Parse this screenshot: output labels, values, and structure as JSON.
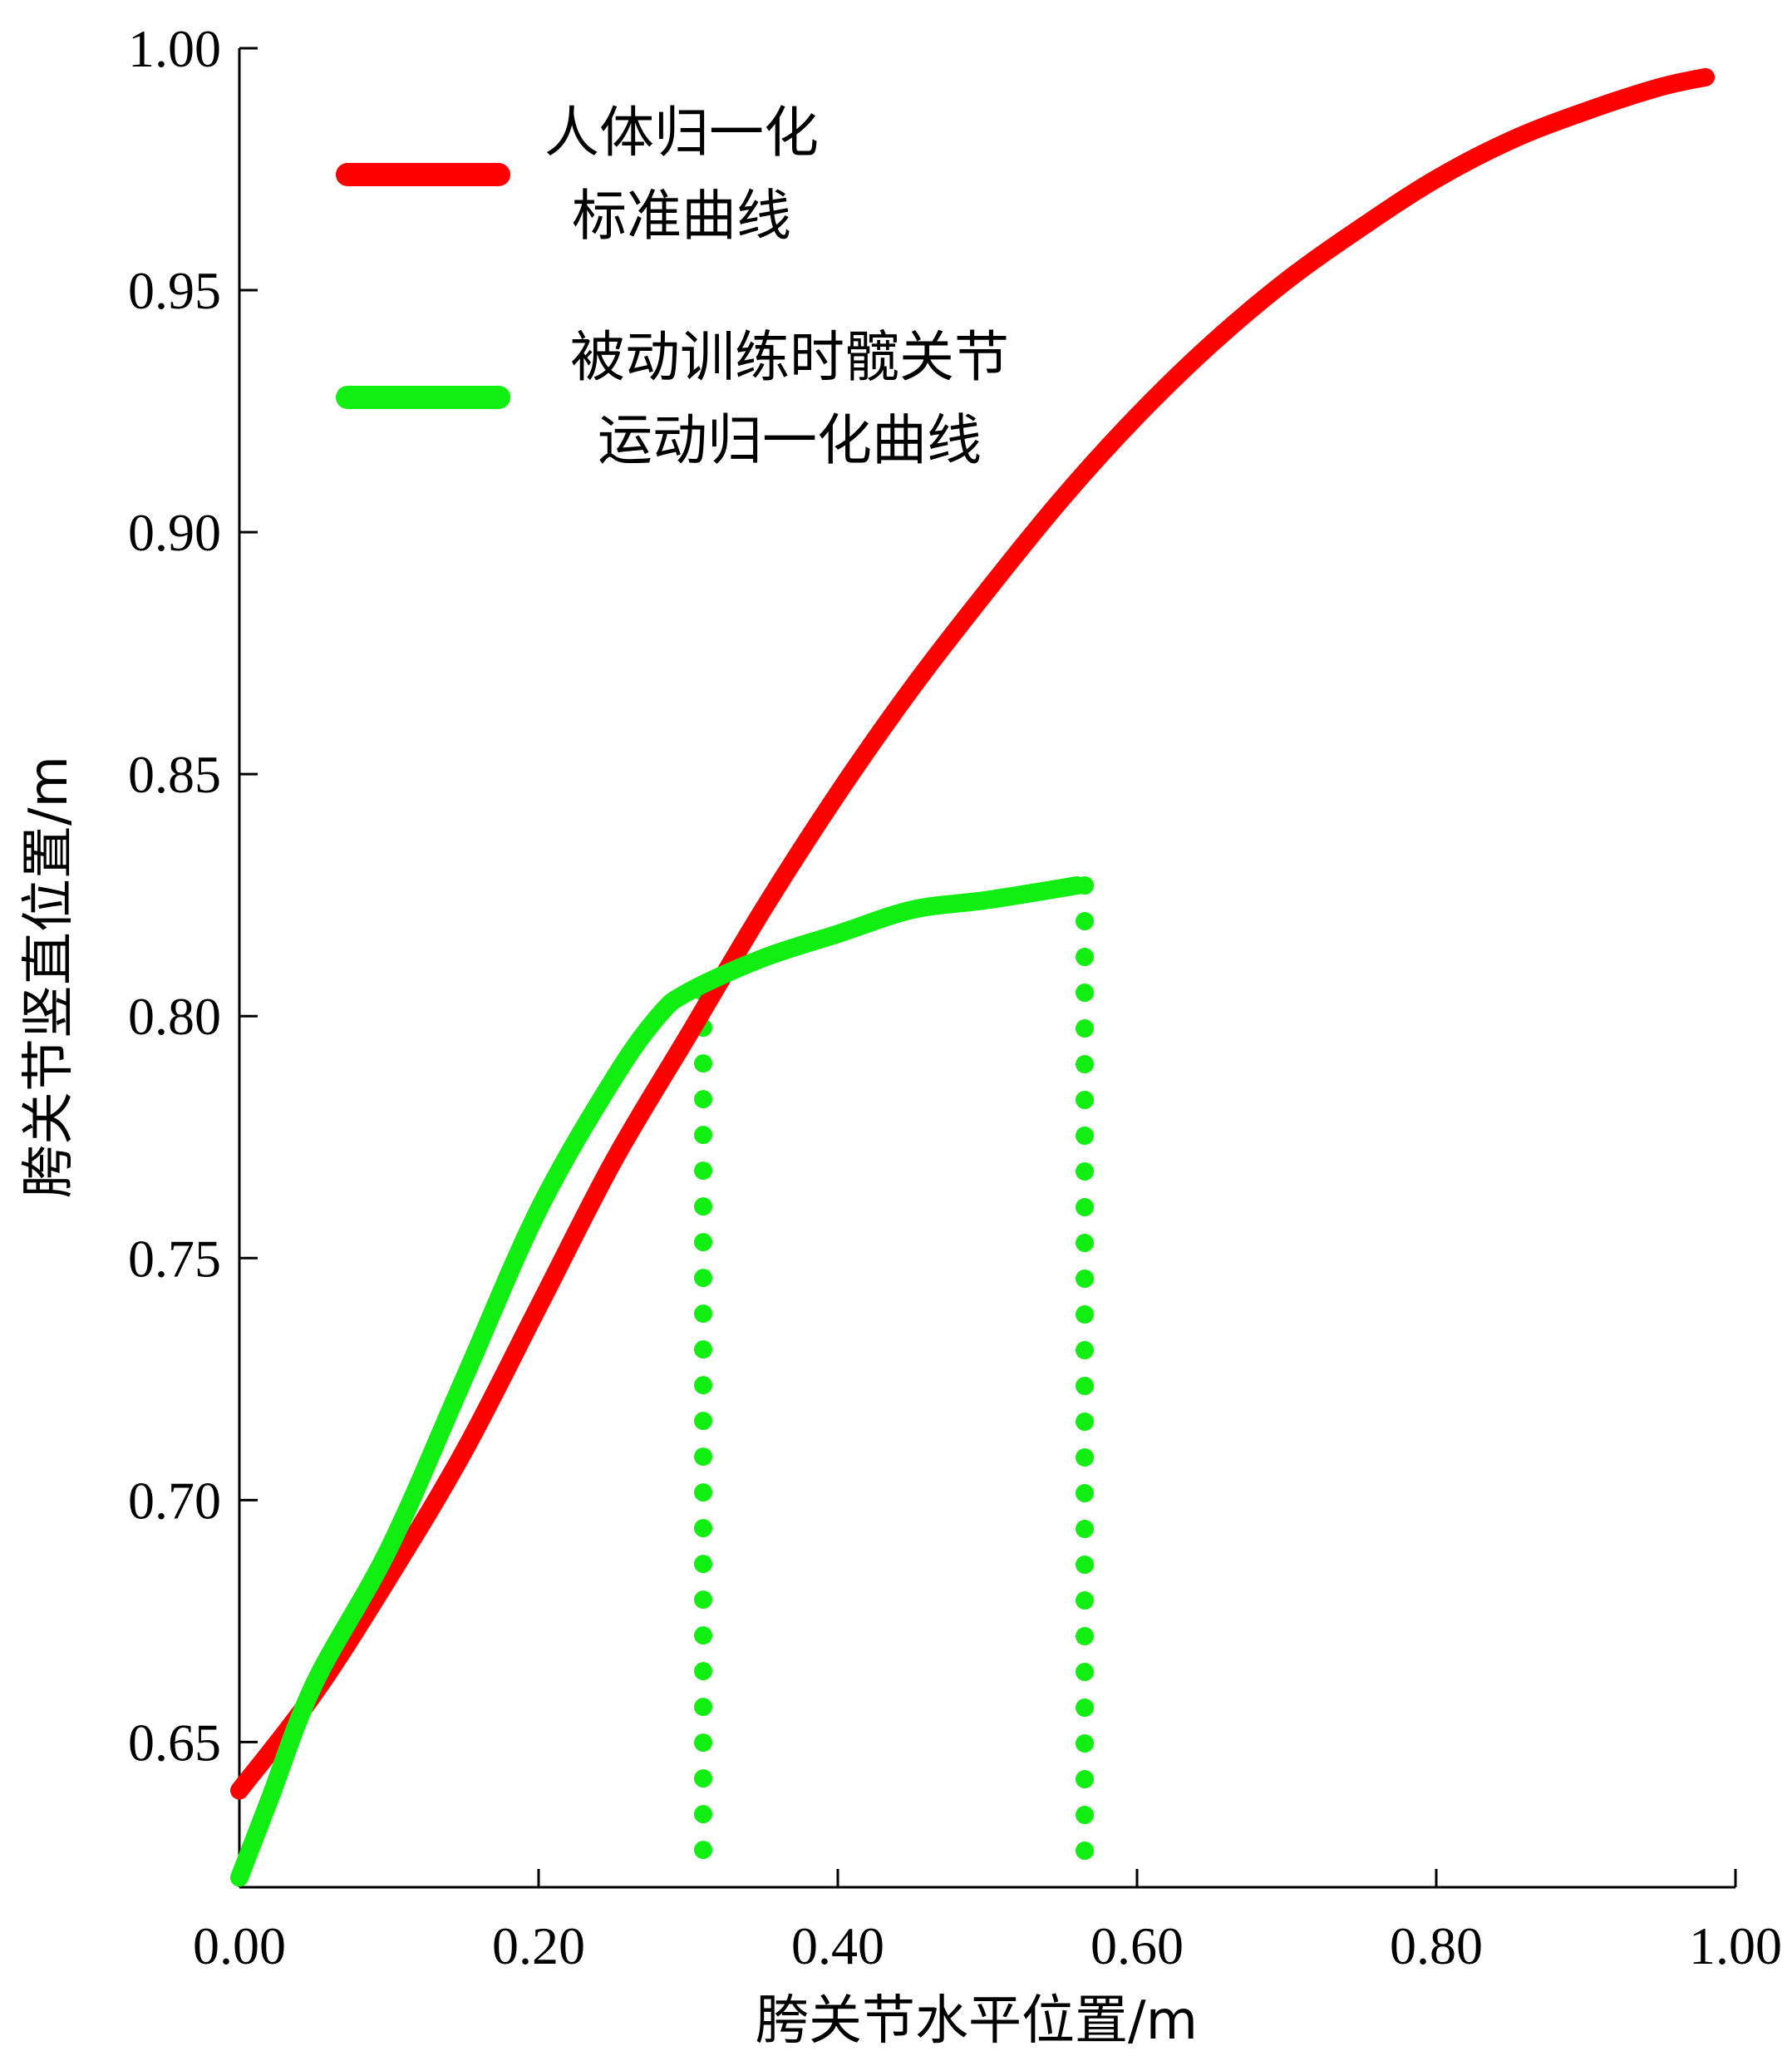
{
  "chart_data": {
    "type": "line",
    "xlabel": "胯关节水平位置/m",
    "ylabel": "胯关节竖直位置/m",
    "xlim": [
      0,
      1.0
    ],
    "ylim": [
      0.62,
      1.0
    ],
    "x_ticks": [
      "0.00",
      "0.20",
      "0.40",
      "0.60",
      "0.80",
      "1.00"
    ],
    "y_ticks": [
      "0.65",
      "0.70",
      "0.75",
      "0.80",
      "0.85",
      "0.90",
      "0.95",
      "1.00"
    ],
    "grid": false,
    "legend_position": "top-left",
    "series": [
      {
        "name_lines": [
          "人体归一化",
          "标准曲线"
        ],
        "color": "#ff0000",
        "x": [
          0.0,
          0.05,
          0.1,
          0.15,
          0.2,
          0.25,
          0.3,
          0.35,
          0.4,
          0.45,
          0.5,
          0.55,
          0.6,
          0.65,
          0.7,
          0.75,
          0.8,
          0.85,
          0.9,
          0.95,
          0.98
        ],
        "y": [
          0.64,
          0.66,
          0.684,
          0.71,
          0.74,
          0.77,
          0.796,
          0.822,
          0.846,
          0.868,
          0.888,
          0.907,
          0.924,
          0.939,
          0.952,
          0.963,
          0.973,
          0.981,
          0.987,
          0.992,
          0.994
        ]
      },
      {
        "name_lines": [
          "被动训练时髋关节",
          "运动归一化曲线"
        ],
        "color": "#11ee11",
        "x": [
          0.0,
          0.02,
          0.05,
          0.1,
          0.15,
          0.2,
          0.25,
          0.28,
          0.3,
          0.35,
          0.4,
          0.45,
          0.5,
          0.56
        ],
        "y": [
          0.622,
          0.638,
          0.662,
          0.69,
          0.725,
          0.76,
          0.787,
          0.8,
          0.805,
          0.812,
          0.817,
          0.822,
          0.824,
          0.827
        ]
      }
    ],
    "vertical_markers": [
      {
        "x": 0.31,
        "y_top": 0.805
      },
      {
        "x": 0.565,
        "y_top": 0.827
      }
    ]
  }
}
